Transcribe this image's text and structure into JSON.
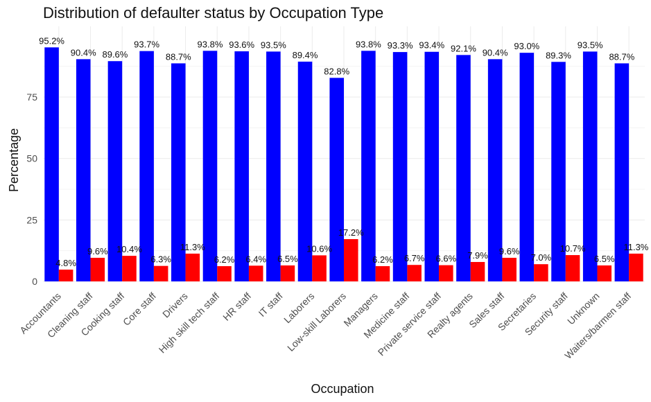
{
  "chart_data": {
    "type": "bar",
    "title": "Distribution of defaulter status by Occupation Type",
    "xlabel": "Occupation",
    "ylabel": "Percentage",
    "ylim": [
      0,
      100
    ],
    "yticks": [
      0,
      25,
      50,
      75
    ],
    "grid": true,
    "legend": "none",
    "categories": [
      "Accountants",
      "Cleaning staff",
      "Cooking staff",
      "Core staff",
      "Drivers",
      "High skill tech staff",
      "HR staff",
      "IT staff",
      "Laborers",
      "Low-skill Laborers",
      "Managers",
      "Medicine staff",
      "Private service staff",
      "Realty agents",
      "Sales staff",
      "Secretaries",
      "Security staff",
      "Unknown",
      "Waiters/barmen staff"
    ],
    "series": [
      {
        "color": "#0000ff",
        "values": [
          95.2,
          90.4,
          89.6,
          93.7,
          88.7,
          93.8,
          93.6,
          93.5,
          89.4,
          82.8,
          93.8,
          93.3,
          93.4,
          92.1,
          90.4,
          93.0,
          89.3,
          93.5,
          88.7
        ],
        "labels": [
          "95.2%",
          "90.4%",
          "89.6%",
          "93.7%",
          "88.7%",
          "93.8%",
          "93.6%",
          "93.5%",
          "89.4%",
          "82.8%",
          "93.8%",
          "93.3%",
          "93.4%",
          "92.1%",
          "90.4%",
          "93.0%",
          "89.3%",
          "93.5%",
          "88.7%"
        ]
      },
      {
        "color": "#ff0000",
        "values": [
          4.8,
          9.6,
          10.4,
          6.3,
          11.3,
          6.2,
          6.4,
          6.5,
          10.6,
          17.2,
          6.2,
          6.7,
          6.6,
          7.9,
          9.6,
          7.0,
          10.7,
          6.5,
          11.3
        ],
        "labels": [
          "4.8%",
          "9.6%",
          "10.4%",
          "6.3%",
          "11.3%",
          "6.2%",
          "6.4%",
          "6.5%",
          "10.6%",
          "17.2%",
          "6.2%",
          "6.7%",
          "6.6%",
          "7.9%",
          "9.6%",
          "7.0%",
          "10.7%",
          "6.5%",
          "11.3%"
        ]
      }
    ]
  }
}
